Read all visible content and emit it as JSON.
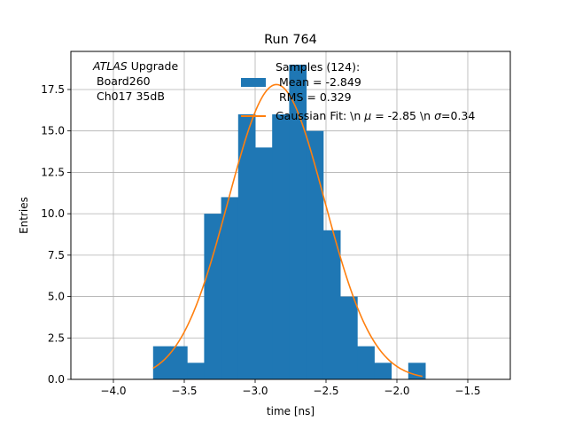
{
  "chart_data": {
    "type": "histogram",
    "title": "Run 764",
    "xlabel": "time [ns]",
    "ylabel": "Entries",
    "xlim": [
      -4.3,
      -1.2
    ],
    "ylim": [
      0,
      19.8
    ],
    "xticks": [
      -4.0,
      -3.5,
      -3.0,
      -2.5,
      -2.0,
      -1.5
    ],
    "xtick_labels": [
      "−4.0",
      "−3.5",
      "−3.0",
      "−2.5",
      "−2.0",
      "−1.5"
    ],
    "yticks": [
      0.0,
      2.5,
      5.0,
      7.5,
      10.0,
      12.5,
      15.0,
      17.5
    ],
    "ytick_labels": [
      "0.0",
      "2.5",
      "5.0",
      "7.5",
      "10.0",
      "12.5",
      "15.0",
      "17.5"
    ],
    "grid": true,
    "legend_position": "upper-center",
    "annotation": {
      "line1_italic": "ATLAS",
      "line1_rest": " Upgrade",
      "line2": "Board260",
      "line3": "Ch017 35dB"
    },
    "histogram": {
      "name_lines": [
        "Samples (124):",
        "Mean = -2.849",
        "RMS = 0.329"
      ],
      "color": "#1f77b4",
      "bin_edges": [
        -3.72,
        -3.6,
        -3.48,
        -3.36,
        -3.24,
        -3.12,
        -3.0,
        -2.88,
        -2.76,
        -2.64,
        -2.52,
        -2.4,
        -2.28,
        -2.16,
        -2.04,
        -1.92,
        -1.8
      ],
      "counts": [
        2,
        2,
        1,
        10,
        11,
        16,
        14,
        16,
        19,
        15,
        9,
        5,
        2,
        1,
        0,
        1
      ]
    },
    "fit": {
      "name_prefix": "Gaussian Fit: \\n ",
      "name_mu": " = -2.85 \\n ",
      "name_sigma": "=0.34",
      "color": "#ff7f0e",
      "mu": -2.85,
      "sigma": 0.34,
      "amplitude": 17.8,
      "x_range": [
        -3.72,
        -1.82
      ]
    }
  }
}
